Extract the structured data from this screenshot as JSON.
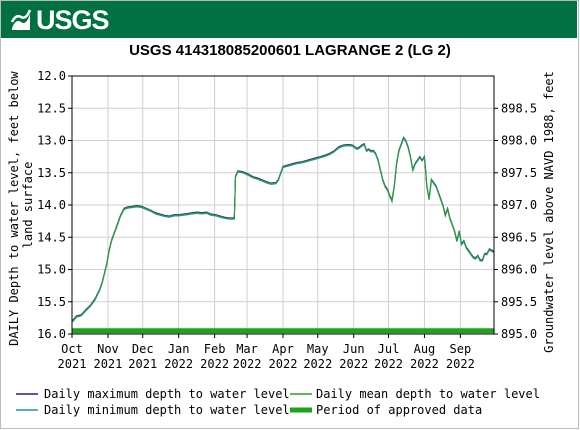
{
  "header": {
    "logo_text": "USGS",
    "title": "USGS 414318085200601 LAGRANGE 2 (LG 2)"
  },
  "colors": {
    "banner": "#006f41",
    "max_line": "#1f1f8f",
    "min_line": "#2e8bb6",
    "mean_line": "#2ca02c",
    "approved": "#1aa51a",
    "grid": "#d0d0d0"
  },
  "chart_data": {
    "type": "line",
    "xlabel": "",
    "ylabel_left": "DAILY Depth to water level, feet below land surface",
    "ylabel_right": "Groundwater level above NAVD 1988, feet",
    "x_ticks": [
      {
        "month": "Oct",
        "year": "2021",
        "day": 0
      },
      {
        "month": "Nov",
        "year": "2021",
        "day": 31
      },
      {
        "month": "Dec",
        "year": "2021",
        "day": 61
      },
      {
        "month": "Jan",
        "year": "2022",
        "day": 92
      },
      {
        "month": "Feb",
        "year": "2022",
        "day": 123
      },
      {
        "month": "Mar",
        "year": "2022",
        "day": 151
      },
      {
        "month": "Apr",
        "year": "2022",
        "day": 182
      },
      {
        "month": "May",
        "year": "2022",
        "day": 212
      },
      {
        "month": "Jun",
        "year": "2022",
        "day": 243
      },
      {
        "month": "Jul",
        "year": "2022",
        "day": 273
      },
      {
        "month": "Aug",
        "year": "2022",
        "day": 304
      },
      {
        "month": "Sep",
        "year": "2022",
        "day": 335
      }
    ],
    "x_range": [
      0,
      364
    ],
    "y_left_range": [
      12.0,
      16.0
    ],
    "y_left_ticks": [
      "12.0",
      "12.5",
      "13.0",
      "13.5",
      "14.0",
      "14.5",
      "15.0",
      "15.5",
      "16.0"
    ],
    "y_right_ticks": [
      "895.0",
      "895.5",
      "896.0",
      "896.5",
      "897.0",
      "897.5",
      "898.0",
      "898.5"
    ],
    "y_right_values": [
      895.0,
      895.5,
      896.0,
      896.5,
      897.0,
      897.5,
      898.0,
      898.5
    ],
    "datum_offset": 911.0,
    "grid": true,
    "series": [
      {
        "name": "Daily maximum depth to water level",
        "x": [
          0,
          4,
          8,
          12,
          16,
          20,
          24,
          26,
          28,
          30,
          32,
          34,
          36,
          38,
          40,
          42,
          45,
          48,
          52,
          56,
          60,
          64,
          68,
          72,
          76,
          80,
          84,
          88,
          92,
          96,
          100,
          104,
          108,
          112,
          116,
          120,
          124,
          128,
          132,
          136,
          140,
          141,
          143,
          147,
          152,
          156,
          160,
          164,
          168,
          172,
          176,
          178,
          180,
          182,
          186,
          190,
          194,
          198,
          202,
          206,
          210,
          214,
          218,
          222,
          226,
          230,
          234,
          238,
          242,
          244,
          246,
          248,
          250,
          252,
          254,
          256,
          258,
          260,
          262,
          264,
          266,
          268,
          270,
          272,
          274,
          276,
          278,
          280,
          282,
          284,
          286,
          288,
          290,
          292,
          294,
          296,
          298,
          300,
          302,
          304,
          305,
          306,
          308,
          310,
          312,
          314,
          316,
          318,
          320,
          322,
          324,
          326,
          328,
          330,
          332,
          334,
          336,
          338,
          340,
          342,
          344,
          346,
          348,
          350,
          352,
          354,
          356,
          358,
          360,
          362,
          364
        ],
        "y": [
          15.8,
          15.72,
          15.7,
          15.62,
          15.55,
          15.45,
          15.3,
          15.2,
          15.05,
          14.9,
          14.7,
          14.55,
          14.45,
          14.35,
          14.25,
          14.15,
          14.05,
          14.03,
          14.02,
          14.01,
          14.02,
          14.05,
          14.08,
          14.12,
          14.14,
          14.16,
          14.17,
          14.15,
          14.15,
          14.14,
          14.13,
          14.12,
          14.11,
          14.12,
          14.11,
          14.14,
          14.15,
          14.17,
          14.19,
          14.2,
          14.2,
          13.55,
          13.47,
          13.48,
          13.52,
          13.56,
          13.58,
          13.61,
          13.64,
          13.66,
          13.65,
          13.6,
          13.5,
          13.4,
          13.38,
          13.36,
          13.34,
          13.33,
          13.31,
          13.29,
          13.27,
          13.25,
          13.23,
          13.2,
          13.16,
          13.1,
          13.07,
          13.06,
          13.07,
          13.1,
          13.12,
          13.1,
          13.07,
          13.05,
          13.15,
          13.13,
          13.16,
          13.15,
          13.2,
          13.3,
          13.45,
          13.6,
          13.7,
          13.75,
          13.85,
          13.92,
          13.7,
          13.35,
          13.15,
          13.05,
          12.95,
          13.0,
          13.1,
          13.25,
          13.45,
          13.35,
          13.3,
          13.25,
          13.3,
          13.25,
          13.45,
          13.7,
          13.9,
          13.6,
          13.65,
          13.7,
          13.8,
          13.9,
          14.0,
          14.15,
          14.05,
          14.2,
          14.3,
          14.4,
          14.55,
          14.4,
          14.6,
          14.55,
          14.65,
          14.7,
          14.75,
          14.8,
          14.82,
          14.78,
          14.85,
          14.85,
          14.75,
          14.75,
          14.68,
          14.7,
          14.72
        ]
      },
      {
        "name": "Daily minimum depth to water level",
        "x": [
          0,
          4,
          8,
          12,
          16,
          20,
          24,
          26,
          28,
          30,
          32,
          34,
          36,
          38,
          40,
          42,
          45,
          48,
          52,
          56,
          60,
          64,
          68,
          72,
          76,
          80,
          84,
          88,
          92,
          96,
          100,
          104,
          108,
          112,
          116,
          120,
          124,
          128,
          132,
          136,
          140,
          141,
          143,
          147,
          152,
          156,
          160,
          164,
          168,
          172,
          176,
          178,
          180,
          182,
          186,
          190,
          194,
          198,
          202,
          206,
          210,
          214,
          218,
          222,
          226,
          230,
          234,
          238,
          242,
          244,
          246,
          248,
          250,
          252,
          254,
          256,
          258,
          260,
          262,
          264,
          266,
          268,
          270,
          272,
          274,
          276,
          278,
          280,
          282,
          284,
          286,
          288,
          290,
          292,
          294,
          296,
          298,
          300,
          302,
          304,
          305,
          306,
          308,
          310,
          312,
          314,
          316,
          318,
          320,
          322,
          324,
          326,
          328,
          330,
          332,
          334,
          336,
          338,
          340,
          342,
          344,
          346,
          348,
          350,
          352,
          354,
          356,
          358,
          360,
          362,
          364
        ],
        "y": [
          15.82,
          15.74,
          15.72,
          15.64,
          15.57,
          15.47,
          15.32,
          15.22,
          15.07,
          14.92,
          14.72,
          14.57,
          14.47,
          14.37,
          14.27,
          14.17,
          14.07,
          14.05,
          14.04,
          14.03,
          14.04,
          14.07,
          14.1,
          14.14,
          14.16,
          14.18,
          14.19,
          14.17,
          14.17,
          14.16,
          14.15,
          14.14,
          14.13,
          14.14,
          14.13,
          14.16,
          14.17,
          14.19,
          14.21,
          14.22,
          14.22,
          13.57,
          13.49,
          13.5,
          13.54,
          13.58,
          13.6,
          13.63,
          13.66,
          13.68,
          13.67,
          13.62,
          13.52,
          13.42,
          13.4,
          13.38,
          13.36,
          13.35,
          13.33,
          13.31,
          13.29,
          13.27,
          13.25,
          13.22,
          13.18,
          13.12,
          13.09,
          13.08,
          13.09,
          13.12,
          13.14,
          13.12,
          13.09,
          13.07,
          13.17,
          13.15,
          13.18,
          13.17,
          13.22,
          13.32,
          13.47,
          13.62,
          13.72,
          13.77,
          13.87,
          13.95,
          13.72,
          13.37,
          13.17,
          13.07,
          12.97,
          13.02,
          13.12,
          13.27,
          13.47,
          13.37,
          13.32,
          13.27,
          13.32,
          13.27,
          13.47,
          13.72,
          13.92,
          13.62,
          13.67,
          13.72,
          13.82,
          13.92,
          14.02,
          14.17,
          14.07,
          14.22,
          14.32,
          14.42,
          14.57,
          14.42,
          14.62,
          14.57,
          14.67,
          14.72,
          14.77,
          14.82,
          14.84,
          14.8,
          14.87,
          14.87,
          14.77,
          14.77,
          14.7,
          14.72,
          14.74
        ]
      },
      {
        "name": "Daily mean depth to water level",
        "x": [
          0,
          4,
          8,
          12,
          16,
          20,
          24,
          26,
          28,
          30,
          32,
          34,
          36,
          38,
          40,
          42,
          45,
          48,
          52,
          56,
          60,
          64,
          68,
          72,
          76,
          80,
          84,
          88,
          92,
          96,
          100,
          104,
          108,
          112,
          116,
          120,
          124,
          128,
          132,
          136,
          140,
          141,
          143,
          147,
          152,
          156,
          160,
          164,
          168,
          172,
          176,
          178,
          180,
          182,
          186,
          190,
          194,
          198,
          202,
          206,
          210,
          214,
          218,
          222,
          226,
          230,
          234,
          238,
          242,
          244,
          246,
          248,
          250,
          252,
          254,
          256,
          258,
          260,
          262,
          264,
          266,
          268,
          270,
          272,
          274,
          276,
          278,
          280,
          282,
          284,
          286,
          288,
          290,
          292,
          294,
          296,
          298,
          300,
          302,
          304,
          305,
          306,
          308,
          310,
          312,
          314,
          316,
          318,
          320,
          322,
          324,
          326,
          328,
          330,
          332,
          334,
          336,
          338,
          340,
          342,
          344,
          346,
          348,
          350,
          352,
          354,
          356,
          358,
          360,
          362,
          364
        ],
        "y": [
          15.81,
          15.73,
          15.71,
          15.63,
          15.56,
          15.46,
          15.31,
          15.21,
          15.06,
          14.91,
          14.71,
          14.56,
          14.46,
          14.36,
          14.26,
          14.16,
          14.06,
          14.04,
          14.03,
          14.02,
          14.03,
          14.06,
          14.09,
          14.13,
          14.15,
          14.17,
          14.18,
          14.16,
          14.16,
          14.15,
          14.14,
          14.13,
          14.12,
          14.13,
          14.12,
          14.15,
          14.16,
          14.18,
          14.2,
          14.21,
          14.21,
          13.56,
          13.48,
          13.49,
          13.53,
          13.57,
          13.59,
          13.62,
          13.65,
          13.67,
          13.66,
          13.61,
          13.51,
          13.41,
          13.39,
          13.37,
          13.35,
          13.34,
          13.32,
          13.3,
          13.28,
          13.26,
          13.24,
          13.21,
          13.17,
          13.11,
          13.08,
          13.07,
          13.08,
          13.11,
          13.13,
          13.11,
          13.08,
          13.06,
          13.16,
          13.14,
          13.17,
          13.16,
          13.21,
          13.31,
          13.46,
          13.61,
          13.71,
          13.76,
          13.86,
          13.93,
          13.71,
          13.36,
          13.16,
          13.06,
          12.96,
          13.01,
          13.11,
          13.26,
          13.46,
          13.36,
          13.31,
          13.26,
          13.31,
          13.26,
          13.46,
          13.71,
          13.91,
          13.61,
          13.66,
          13.71,
          13.81,
          13.91,
          14.01,
          14.16,
          14.06,
          14.21,
          14.31,
          14.41,
          14.56,
          14.41,
          14.61,
          14.56,
          14.66,
          14.71,
          14.76,
          14.81,
          14.83,
          14.79,
          14.86,
          14.86,
          14.76,
          14.76,
          14.69,
          14.71,
          14.73
        ]
      }
    ],
    "approved_period": {
      "name": "Period of approved data",
      "x": [
        0,
        364
      ],
      "y": 15.95
    },
    "legend": {
      "placement": "bottom",
      "items": [
        {
          "label": "Daily maximum depth to water level",
          "color": "#1f1f8f",
          "style": "line"
        },
        {
          "label": "Daily mean depth to water level",
          "color": "#2ca02c",
          "style": "line"
        },
        {
          "label": "Daily minimum depth to water level",
          "color": "#2e8bb6",
          "style": "line"
        },
        {
          "label": "Period of approved data",
          "color": "#1aa51a",
          "style": "thick"
        }
      ]
    }
  }
}
